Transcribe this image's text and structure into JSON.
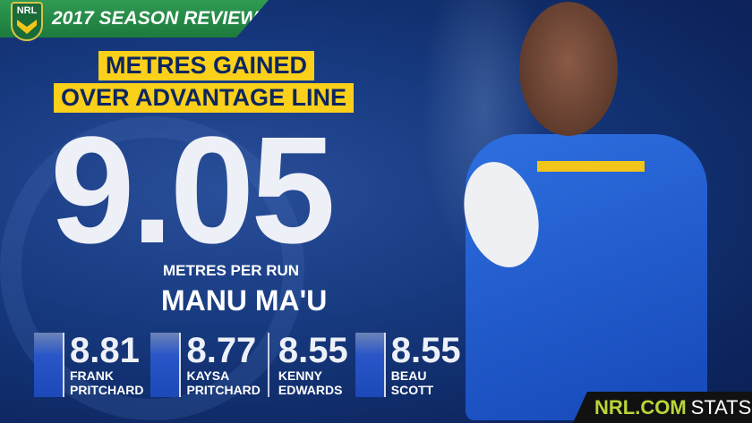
{
  "header": {
    "title": "2017 SEASON REVIEW",
    "logo_text": "NRL"
  },
  "stat": {
    "title_line1": "METRES GAINED",
    "title_line2": "OVER ADVANTAGE LINE",
    "value": "9.05",
    "unit": "METRES PER RUN",
    "player": "MANU MA'U"
  },
  "others": [
    {
      "value": "8.81",
      "first": "FRANK",
      "last": "PRITCHARD",
      "has_photo": true
    },
    {
      "value": "8.77",
      "first": "KAYSA",
      "last": "PRITCHARD",
      "has_photo": true
    },
    {
      "value": "8.55",
      "first": "KENNY",
      "last": "EDWARDS",
      "has_photo": false
    },
    {
      "value": "8.55",
      "first": "BEAU",
      "last": "SCOTT",
      "has_photo": true
    }
  ],
  "footer": {
    "brand": "NRL.COM",
    "suffix": "STATS"
  },
  "colors": {
    "background": "#173a80",
    "accent_yellow": "#fbd01a",
    "header_green": "#2f9a52",
    "brand_lime": "#b9d638"
  }
}
